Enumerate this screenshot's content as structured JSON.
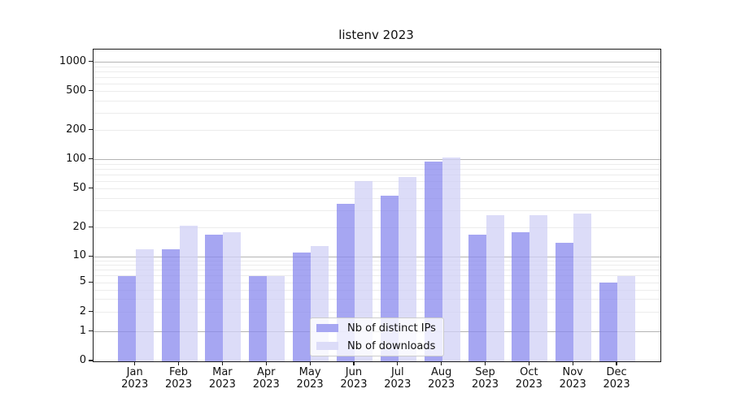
{
  "chart_data": {
    "type": "bar",
    "title": "listenv 2023",
    "categories": [
      "Jan",
      "Feb",
      "Mar",
      "Apr",
      "May",
      "Jun",
      "Jul",
      "Aug",
      "Sep",
      "Oct",
      "Nov",
      "Dec"
    ],
    "category_year": "2023",
    "series": [
      {
        "name": "Nb of distinct IPs",
        "solid_color": "#a6a6f2",
        "fill_color": "rgba(136,136,238,0.75)",
        "values": [
          6,
          12,
          17,
          6,
          11,
          35,
          43,
          95,
          17,
          18,
          14,
          5
        ]
      },
      {
        "name": "Nb of downloads",
        "solid_color": "#dcdcf8",
        "fill_color": "rgba(208,208,246,0.75)",
        "values": [
          12,
          21,
          18,
          6,
          13,
          60,
          67,
          105,
          27,
          27,
          28,
          6
        ]
      }
    ],
    "yticks": [
      0,
      1,
      2,
      5,
      10,
      20,
      50,
      100,
      200,
      500,
      1000
    ],
    "yscale": "log",
    "ylim": [
      0,
      1283
    ],
    "grid": true,
    "legend_position": "lower center",
    "background": "#ffffff"
  }
}
